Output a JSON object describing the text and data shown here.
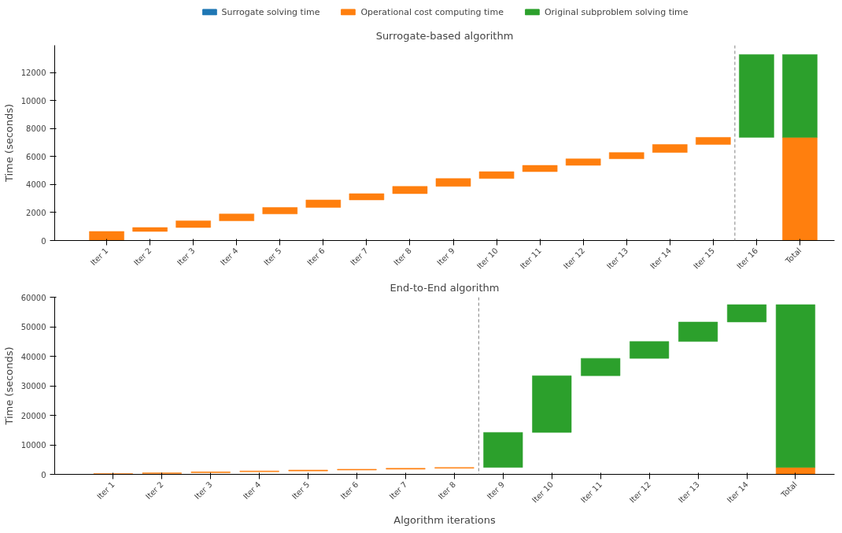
{
  "chart_data": [
    {
      "type": "bar",
      "title": "Surrogate-based algorithm",
      "ylabel": "Time (seconds)",
      "categories": [
        "Iter 1",
        "Iter 2",
        "Iter 3",
        "Iter 4",
        "Iter 5",
        "Iter 6",
        "Iter 7",
        "Iter 8",
        "Iter 9",
        "Iter 10",
        "Iter 11",
        "Iter 12",
        "Iter 13",
        "Iter 14",
        "Iter 15",
        "Iter 16",
        "Total"
      ],
      "series": [
        {
          "name": "Surrogate solving time",
          "color": "#1f77b4",
          "values": [
            null,
            null,
            null,
            null,
            null,
            null,
            null,
            null,
            null,
            null,
            null,
            null,
            null,
            null,
            null,
            null,
            null
          ],
          "base": [
            null,
            null,
            null,
            null,
            null,
            null,
            null,
            null,
            null,
            null,
            null,
            null,
            null,
            null,
            null,
            null,
            null
          ]
        },
        {
          "name": "Operational cost computing time",
          "color": "#ff7f0e",
          "values": [
            650,
            280,
            480,
            490,
            460,
            540,
            450,
            520,
            560,
            490,
            450,
            470,
            450,
            570,
            510,
            null,
            7370
          ],
          "base": [
            0,
            650,
            930,
            1410,
            1900,
            2360,
            2900,
            3350,
            3870,
            4430,
            4920,
            5370,
            5840,
            6290,
            6860,
            null,
            0
          ]
        },
        {
          "name": "Original subproblem solving time",
          "color": "#2ca02c",
          "values": [
            null,
            null,
            null,
            null,
            null,
            null,
            null,
            null,
            null,
            null,
            null,
            null,
            null,
            null,
            null,
            5920,
            5920
          ],
          "base": [
            null,
            null,
            null,
            null,
            null,
            null,
            null,
            null,
            null,
            null,
            null,
            null,
            null,
            null,
            null,
            7370,
            7370
          ]
        }
      ],
      "ylim": [
        0,
        13950
      ],
      "yticks": [
        0,
        2000,
        4000,
        6000,
        8000,
        10000,
        12000
      ],
      "grid": false,
      "legend": "top"
    },
    {
      "type": "bar",
      "title": "End-to-End algorithm",
      "ylabel": "Time (seconds)",
      "xlabel": "Algorithm iterations",
      "categories": [
        "Iter 1",
        "Iter 2",
        "Iter 3",
        "Iter 4",
        "Iter 5",
        "Iter 6",
        "Iter 7",
        "Iter 8",
        "Iter 9",
        "Iter 10",
        "Iter 11",
        "Iter 12",
        "Iter 13",
        "Iter 14",
        "Total"
      ],
      "series": [
        {
          "color": "#ff7f0e",
          "values": [
            250,
            300,
            300,
            300,
            300,
            300,
            300,
            300,
            null,
            null,
            null,
            null,
            null,
            null,
            2350
          ],
          "base": [
            0,
            250,
            550,
            850,
            1150,
            1450,
            1750,
            2050,
            null,
            null,
            null,
            null,
            null,
            null,
            0
          ]
        },
        {
          "color": "#2ca02c",
          "values": [
            null,
            null,
            null,
            null,
            null,
            null,
            null,
            null,
            11850,
            19200,
            5900,
            5700,
            6600,
            5900,
            55150
          ],
          "base": [
            null,
            null,
            null,
            null,
            null,
            null,
            null,
            null,
            2350,
            14200,
            33400,
            39300,
            45000,
            51600,
            2350
          ]
        }
      ],
      "ylim": [
        0,
        60000
      ],
      "yticks": [
        0,
        10000,
        20000,
        30000,
        40000,
        50000,
        60000
      ],
      "grid": false,
      "legend": false
    }
  ]
}
